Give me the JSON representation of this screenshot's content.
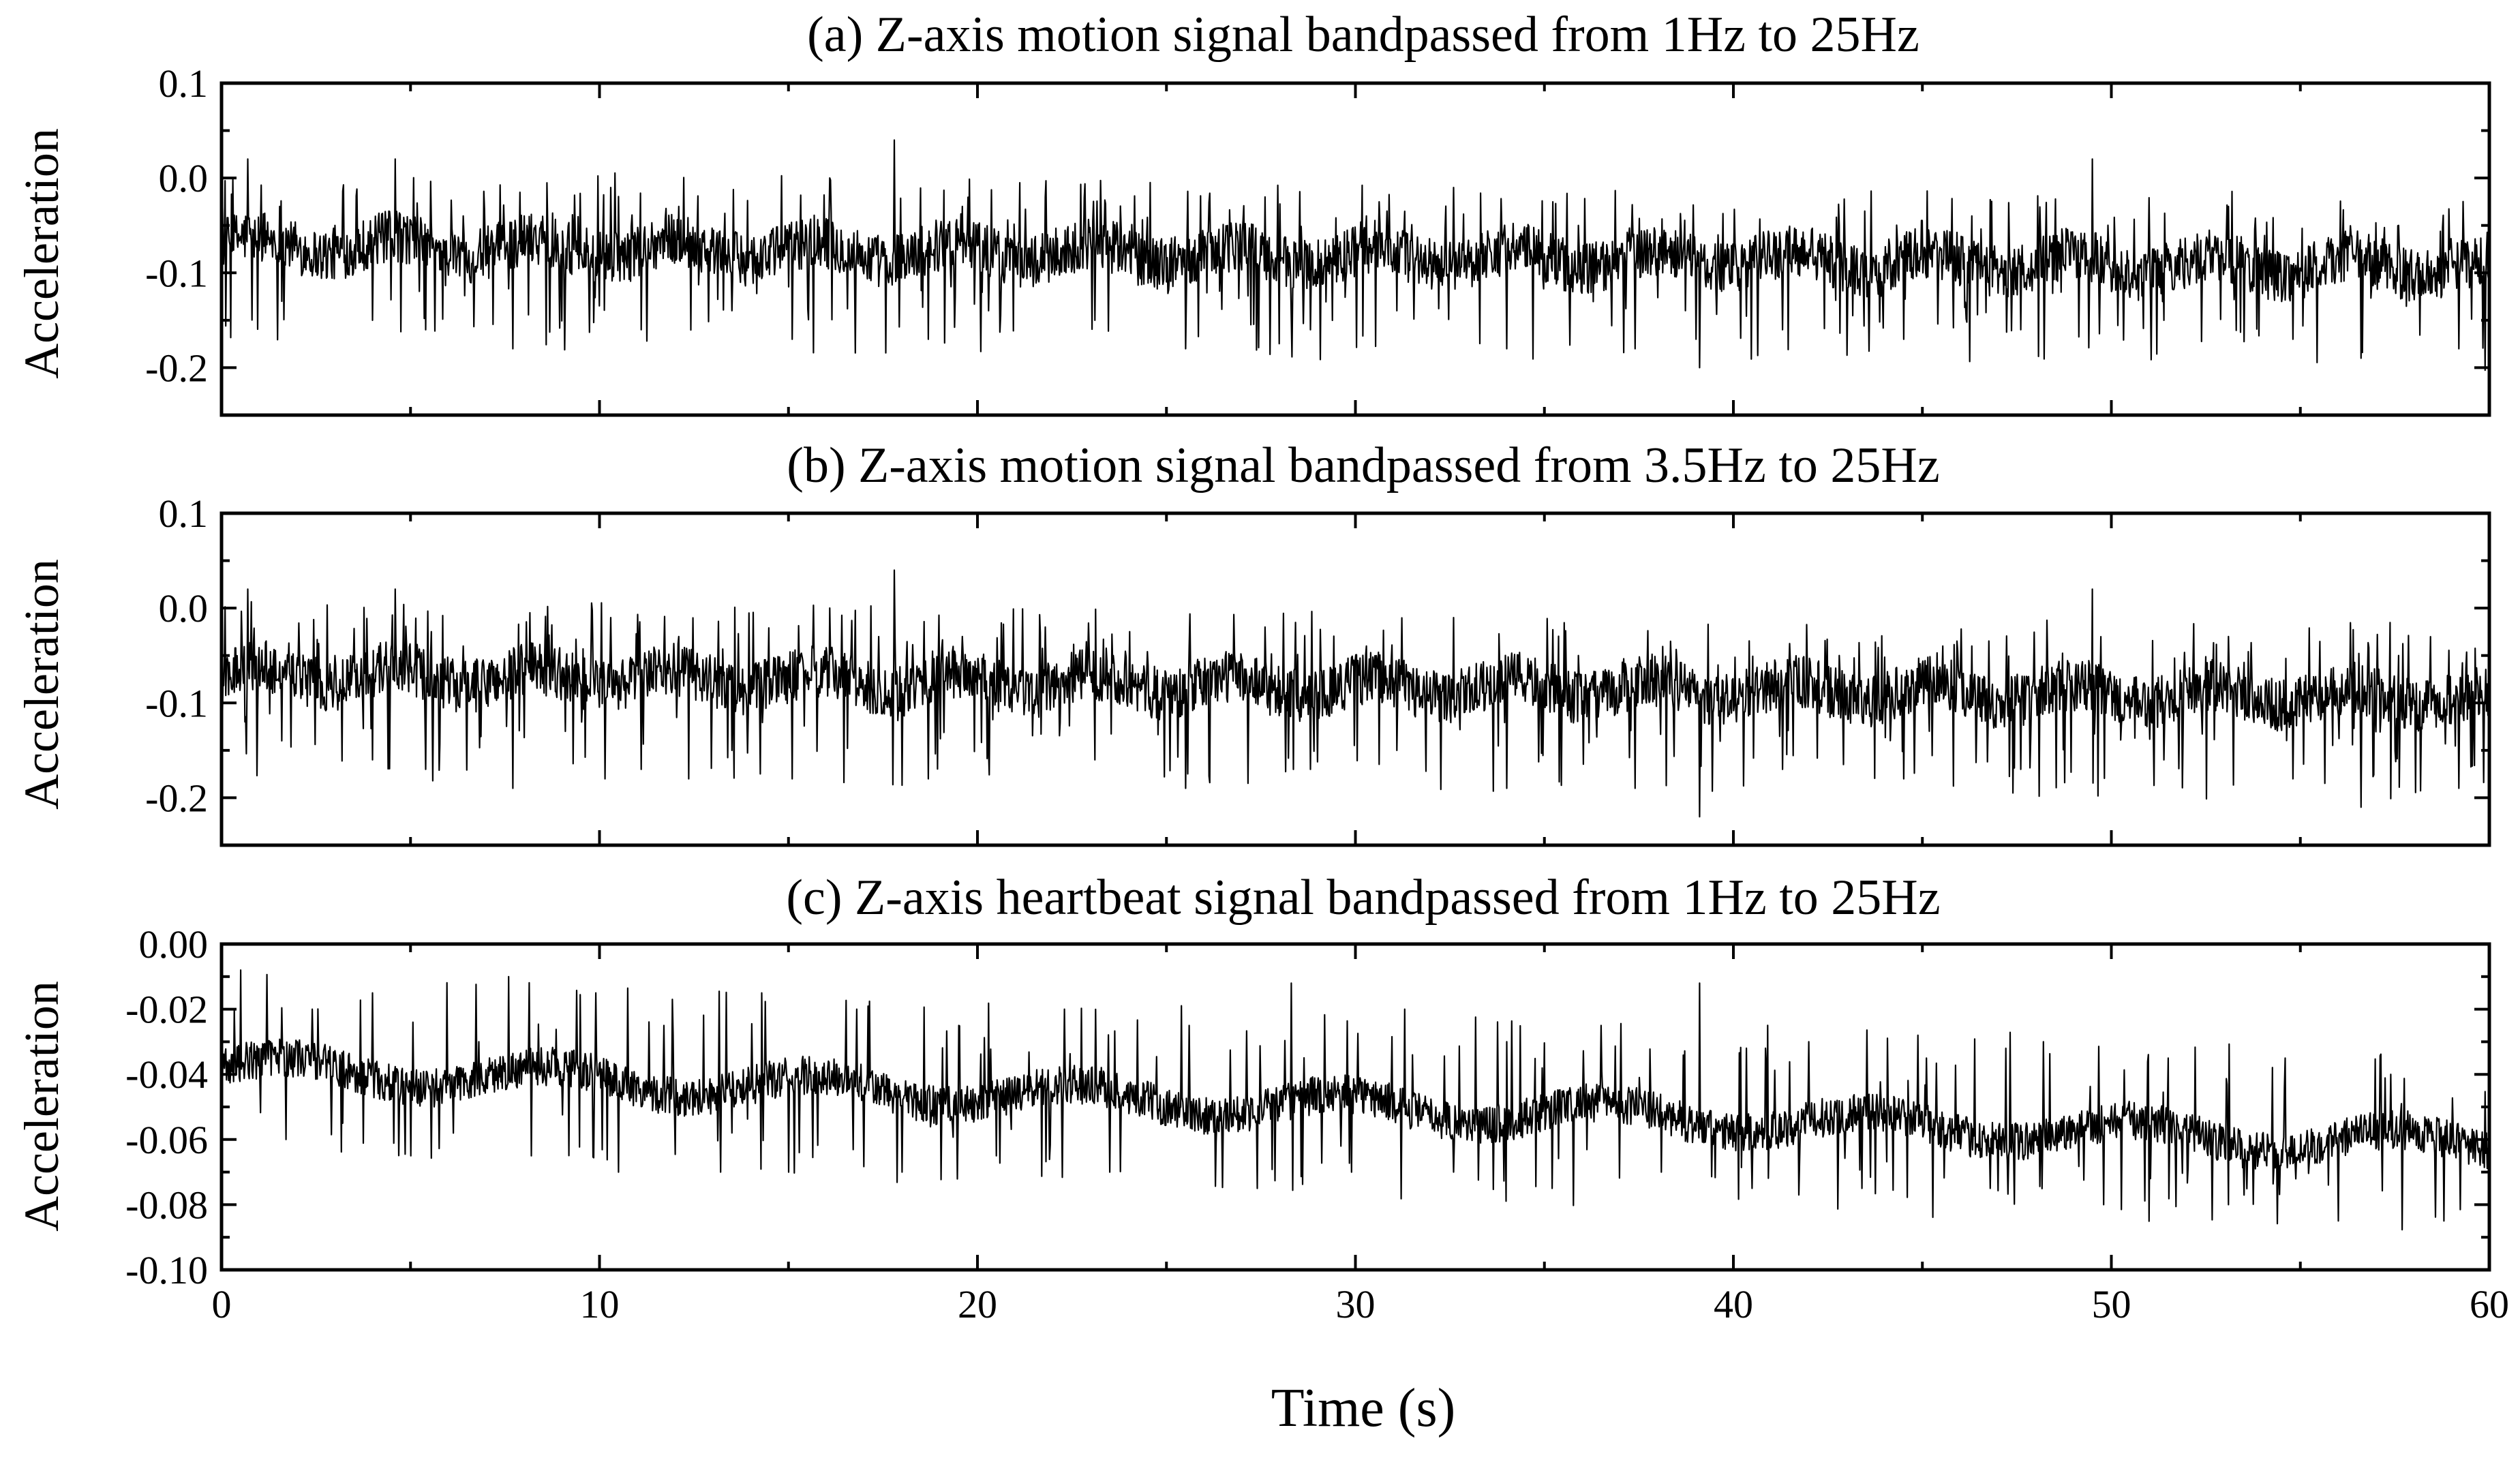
{
  "figure": {
    "xlabel": "Time (s)",
    "colors": {
      "line": "#000000",
      "frame": "#000000",
      "background": "#ffffff"
    }
  },
  "chart_data": [
    {
      "type": "line",
      "title": "(a) Z-axis motion signal bandpassed from 1Hz to 25Hz",
      "xlabel": "",
      "ylabel": "Acceleration",
      "xlim": [
        0,
        60
      ],
      "ylim": [
        -0.25,
        0.1
      ],
      "yticks": [
        -0.2,
        -0.1,
        0.0,
        0.1
      ],
      "ytick_labels": [
        "-0.2",
        "-0.1",
        "0.0",
        "0.1"
      ],
      "xticks": [
        0,
        10,
        20,
        30,
        40,
        50,
        60
      ],
      "xtick_labels": [],
      "grid": false,
      "trend": {
        "start": -0.07,
        "end": -0.095
      },
      "series": [
        {
          "x": [
            0,
            0.7,
            1.6,
            3.0,
            4.0,
            4.6,
            5.4,
            6.4,
            7.7,
            8.3,
            9.1,
            10.3,
            11.1,
            12.1,
            13.5,
            15.1,
            15.5,
            16.1,
            17.8,
            18.7,
            19.6,
            20.3,
            21.8,
            23.1,
            23.9,
            25.5,
            27.6,
            28.8,
            30.3,
            31.1,
            32.6,
            34.0,
            35.9,
            37.4,
            39.1,
            39.6,
            41.3,
            42.8,
            44.5,
            46.3,
            47.6,
            49.5,
            51.4,
            53.1,
            54.8,
            56.6,
            57.6,
            59.2,
            60
          ],
          "values": [
            -0.06,
            0.02,
            -0.13,
            -0.05,
            -0.15,
            0.02,
            -0.16,
            -0.04,
            -0.18,
            -0.05,
            -0.12,
            -0.01,
            -0.16,
            -0.03,
            -0.14,
            -0.17,
            -0.08,
            0.0,
            0.04,
            -0.17,
            -0.03,
            -0.14,
            -0.02,
            -0.15,
            -0.06,
            -0.18,
            -0.02,
            -0.16,
            -0.04,
            -0.14,
            -0.01,
            -0.18,
            -0.05,
            -0.18,
            -0.2,
            -0.06,
            -0.16,
            -0.05,
            -0.17,
            -0.04,
            -0.16,
            0.02,
            -0.15,
            -0.03,
            -0.17,
            -0.19,
            -0.05,
            -0.18,
            -0.1
          ]
        }
      ]
    },
    {
      "type": "line",
      "title": "(b) Z-axis motion signal bandpassed from 3.5Hz to 25Hz",
      "xlabel": "",
      "ylabel": "Acceleration",
      "xlim": [
        0,
        60
      ],
      "ylim": [
        -0.25,
        0.1
      ],
      "yticks": [
        -0.2,
        -0.1,
        0.0,
        0.1
      ],
      "ytick_labels": [
        "-0.2",
        "-0.1",
        "0.0",
        "0.1"
      ],
      "xticks": [
        0,
        10,
        20,
        30,
        40,
        50,
        60
      ],
      "xtick_labels": [],
      "grid": false,
      "trend": {
        "start": -0.07,
        "end": -0.095
      },
      "series": [
        {
          "x": [
            0,
            0.7,
            1.6,
            3.0,
            4.0,
            4.6,
            5.4,
            6.4,
            7.7,
            8.3,
            9.1,
            10.3,
            11.1,
            12.1,
            13.5,
            15.1,
            15.5,
            16.1,
            17.8,
            18.7,
            19.6,
            20.3,
            21.8,
            23.1,
            23.9,
            25.5,
            27.6,
            28.8,
            30.3,
            31.1,
            32.6,
            34.0,
            35.9,
            37.4,
            39.1,
            39.6,
            41.3,
            42.8,
            44.5,
            46.3,
            47.6,
            49.5,
            51.4,
            53.1,
            54.8,
            56.6,
            57.6,
            59.2,
            60
          ],
          "values": [
            -0.06,
            0.02,
            -0.14,
            -0.05,
            -0.16,
            0.02,
            -0.17,
            -0.04,
            -0.19,
            -0.05,
            -0.13,
            -0.01,
            -0.17,
            -0.03,
            -0.15,
            -0.18,
            -0.08,
            0.0,
            0.04,
            -0.18,
            -0.03,
            -0.15,
            -0.02,
            -0.16,
            -0.06,
            -0.19,
            -0.02,
            -0.17,
            -0.04,
            -0.15,
            -0.01,
            -0.19,
            -0.05,
            -0.19,
            -0.22,
            -0.06,
            -0.17,
            -0.05,
            -0.18,
            -0.04,
            -0.17,
            0.02,
            -0.16,
            -0.03,
            -0.18,
            -0.21,
            -0.05,
            -0.19,
            -0.1
          ]
        }
      ]
    },
    {
      "type": "line",
      "title": "(c) Z-axis heartbeat signal bandpassed from 1Hz to 25Hz",
      "xlabel": "Time (s)",
      "ylabel": "Acceleration",
      "xlim": [
        0,
        60
      ],
      "ylim": [
        -0.1,
        0.0
      ],
      "yticks": [
        -0.1,
        -0.08,
        -0.06,
        -0.04,
        -0.02,
        0.0
      ],
      "ytick_labels": [
        "-0.10",
        "-0.08",
        "-0.06",
        "-0.04",
        "-0.02",
        "0.00"
      ],
      "xticks": [
        0,
        10,
        20,
        30,
        40,
        50,
        60
      ],
      "xtick_labels": [
        "0",
        "10",
        "20",
        "30",
        "40",
        "50",
        "60"
      ],
      "grid": false,
      "trend": {
        "start": -0.038,
        "end": -0.062
      },
      "series": [
        {
          "x": [
            0,
            0.5,
            1.7,
            2.4,
            3.2,
            4.0,
            5.0,
            6.8,
            7.6,
            8.2,
            9.9,
            10.5,
            11.7,
            13.2,
            14.3,
            15.0,
            16.8,
            18.0,
            19.5,
            20.5,
            22.3,
            23.5,
            25.6,
            27.4,
            28.3,
            29.9,
            31.3,
            32.6,
            34.0,
            35.2,
            36.5,
            38.1,
            39.1,
            40.5,
            42.0,
            43.4,
            45.1,
            46.8,
            48.2,
            49.8,
            51.5,
            53.1,
            54.6,
            56.0,
            57.4,
            58.8,
            60
          ],
          "values": [
            -0.03,
            -0.008,
            -0.06,
            -0.02,
            -0.055,
            -0.015,
            -0.065,
            -0.03,
            -0.01,
            -0.065,
            -0.015,
            -0.07,
            -0.025,
            -0.07,
            -0.015,
            -0.07,
            -0.02,
            -0.07,
            -0.025,
            -0.065,
            -0.02,
            -0.07,
            -0.025,
            -0.075,
            -0.012,
            -0.07,
            -0.02,
            -0.07,
            -0.03,
            -0.075,
            -0.025,
            -0.07,
            -0.012,
            -0.075,
            -0.03,
            -0.075,
            -0.035,
            -0.075,
            -0.03,
            -0.08,
            -0.035,
            -0.08,
            -0.035,
            -0.085,
            -0.04,
            -0.085,
            -0.06
          ]
        }
      ]
    }
  ]
}
